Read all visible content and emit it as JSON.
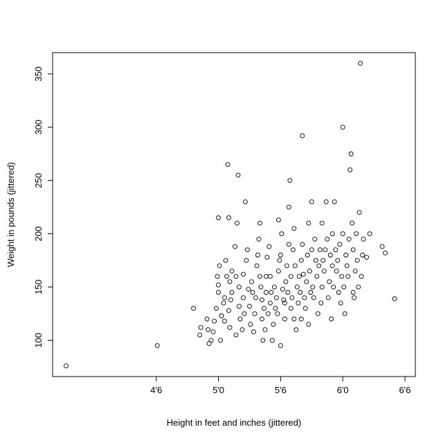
{
  "chart_data": {
    "type": "scatter",
    "title": "",
    "xlabel": "Height in feet and inches (jittered)",
    "ylabel": "Weight in pounds (jittered)",
    "xlim": [
      44,
      79
    ],
    "ylim": [
      66,
      370
    ],
    "x_ticks": [
      {
        "value": 54,
        "label": "4'6"
      },
      {
        "value": 60,
        "label": "5'0"
      },
      {
        "value": 66,
        "label": "5'6"
      },
      {
        "value": 72,
        "label": "6'0"
      },
      {
        "value": 78,
        "label": "6'6"
      }
    ],
    "y_ticks": [
      {
        "value": 100,
        "label": "100"
      },
      {
        "value": 150,
        "label": "150"
      },
      {
        "value": 200,
        "label": "200"
      },
      {
        "value": 250,
        "label": "250"
      },
      {
        "value": 300,
        "label": "300"
      },
      {
        "value": 350,
        "label": "350"
      }
    ],
    "grid": false,
    "legend": "none",
    "points": [
      [
        45.3,
        76
      ],
      [
        54.1,
        95
      ],
      [
        57.6,
        130
      ],
      [
        58.2,
        105
      ],
      [
        58.3,
        112
      ],
      [
        58.9,
        120
      ],
      [
        59.0,
        110
      ],
      [
        59.1,
        97
      ],
      [
        59.3,
        100
      ],
      [
        59.5,
        108
      ],
      [
        59.6,
        118
      ],
      [
        59.8,
        130
      ],
      [
        59.9,
        160
      ],
      [
        60.0,
        145
      ],
      [
        60.0,
        152
      ],
      [
        60.1,
        170
      ],
      [
        60.0,
        215
      ],
      [
        60.2,
        100
      ],
      [
        60.3,
        123
      ],
      [
        60.5,
        135
      ],
      [
        60.6,
        140
      ],
      [
        60.6,
        118
      ],
      [
        60.7,
        175
      ],
      [
        60.8,
        160
      ],
      [
        60.9,
        265
      ],
      [
        61.0,
        215
      ],
      [
        61.0,
        128
      ],
      [
        61.1,
        155
      ],
      [
        61.1,
        112
      ],
      [
        61.2,
        138
      ],
      [
        61.3,
        145
      ],
      [
        61.3,
        165
      ],
      [
        61.6,
        188
      ],
      [
        61.7,
        160
      ],
      [
        61.7,
        105
      ],
      [
        61.8,
        210
      ],
      [
        61.9,
        255
      ],
      [
        62.0,
        150
      ],
      [
        62.0,
        132
      ],
      [
        62.1,
        120
      ],
      [
        62.3,
        110
      ],
      [
        62.4,
        140
      ],
      [
        62.4,
        162
      ],
      [
        62.5,
        125
      ],
      [
        62.6,
        230
      ],
      [
        62.7,
        175
      ],
      [
        62.8,
        185
      ],
      [
        62.9,
        148
      ],
      [
        63.0,
        132
      ],
      [
        63.1,
        115
      ],
      [
        63.2,
        155
      ],
      [
        63.3,
        145
      ],
      [
        63.4,
        108
      ],
      [
        63.5,
        125
      ],
      [
        63.6,
        140
      ],
      [
        63.7,
        170
      ],
      [
        63.8,
        180
      ],
      [
        63.9,
        195
      ],
      [
        64.0,
        210
      ],
      [
        64.0,
        160
      ],
      [
        64.1,
        150
      ],
      [
        64.2,
        138
      ],
      [
        64.2,
        120
      ],
      [
        64.3,
        100
      ],
      [
        64.4,
        130
      ],
      [
        64.5,
        110
      ],
      [
        64.6,
        145
      ],
      [
        64.6,
        160
      ],
      [
        64.7,
        178
      ],
      [
        64.8,
        125
      ],
      [
        64.9,
        188
      ],
      [
        65.0,
        160
      ],
      [
        65.0,
        135
      ],
      [
        65.1,
        145
      ],
      [
        65.2,
        100
      ],
      [
        65.3,
        115
      ],
      [
        65.4,
        150
      ],
      [
        65.5,
        130
      ],
      [
        65.6,
        140
      ],
      [
        65.7,
        125
      ],
      [
        65.8,
        165
      ],
      [
        65.8,
        213
      ],
      [
        65.9,
        175
      ],
      [
        66.0,
        95
      ],
      [
        66.0,
        180
      ],
      [
        66.1,
        200
      ],
      [
        66.2,
        148
      ],
      [
        66.3,
        138
      ],
      [
        66.4,
        135
      ],
      [
        66.4,
        120
      ],
      [
        66.5,
        155
      ],
      [
        66.6,
        170
      ],
      [
        66.7,
        145
      ],
      [
        66.8,
        190
      ],
      [
        66.8,
        225
      ],
      [
        66.9,
        250
      ],
      [
        67.0,
        160
      ],
      [
        67.0,
        130
      ],
      [
        67.1,
        140
      ],
      [
        67.2,
        185
      ],
      [
        67.3,
        120
      ],
      [
        67.3,
        205
      ],
      [
        67.4,
        170
      ],
      [
        67.5,
        110
      ],
      [
        67.6,
        150
      ],
      [
        67.7,
        135
      ],
      [
        67.8,
        160
      ],
      [
        67.9,
        145
      ],
      [
        68.0,
        120
      ],
      [
        68.0,
        175
      ],
      [
        68.1,
        190
      ],
      [
        68.1,
        292
      ],
      [
        68.2,
        162
      ],
      [
        68.3,
        140
      ],
      [
        68.4,
        130
      ],
      [
        68.5,
        155
      ],
      [
        68.6,
        180
      ],
      [
        68.7,
        210
      ],
      [
        68.7,
        115
      ],
      [
        68.8,
        165
      ],
      [
        68.9,
        145
      ],
      [
        69.0,
        230
      ],
      [
        69.0,
        185
      ],
      [
        69.1,
        150
      ],
      [
        69.2,
        140
      ],
      [
        69.3,
        195
      ],
      [
        69.4,
        175
      ],
      [
        69.5,
        160
      ],
      [
        69.6,
        125
      ],
      [
        69.7,
        170
      ],
      [
        69.8,
        185
      ],
      [
        69.9,
        135
      ],
      [
        70.0,
        150
      ],
      [
        70.0,
        210
      ],
      [
        70.1,
        175
      ],
      [
        70.2,
        165
      ],
      [
        70.3,
        185
      ],
      [
        70.4,
        230
      ],
      [
        70.5,
        195
      ],
      [
        70.6,
        140
      ],
      [
        70.7,
        155
      ],
      [
        70.8,
        180
      ],
      [
        70.9,
        120
      ],
      [
        71.0,
        170
      ],
      [
        71.0,
        200
      ],
      [
        71.1,
        150
      ],
      [
        71.2,
        230
      ],
      [
        71.3,
        185
      ],
      [
        71.4,
        165
      ],
      [
        71.5,
        175
      ],
      [
        71.6,
        145
      ],
      [
        71.7,
        190
      ],
      [
        71.8,
        135
      ],
      [
        71.9,
        160
      ],
      [
        72.0,
        300
      ],
      [
        72.0,
        200
      ],
      [
        72.1,
        150
      ],
      [
        72.2,
        125
      ],
      [
        72.3,
        180
      ],
      [
        72.4,
        170
      ],
      [
        72.5,
        160
      ],
      [
        72.6,
        195
      ],
      [
        72.7,
        260
      ],
      [
        72.8,
        275
      ],
      [
        72.9,
        210
      ],
      [
        73.0,
        185
      ],
      [
        73.0,
        145
      ],
      [
        73.1,
        140
      ],
      [
        73.2,
        165
      ],
      [
        73.3,
        200
      ],
      [
        73.4,
        175
      ],
      [
        73.5,
        150
      ],
      [
        73.6,
        220
      ],
      [
        73.7,
        360
      ],
      [
        73.8,
        160
      ],
      [
        73.9,
        180
      ],
      [
        74.0,
        195
      ],
      [
        74.3,
        178
      ],
      [
        74.6,
        200
      ],
      [
        75.8,
        188
      ],
      [
        76.1,
        182
      ],
      [
        77.0,
        139
      ]
    ]
  }
}
